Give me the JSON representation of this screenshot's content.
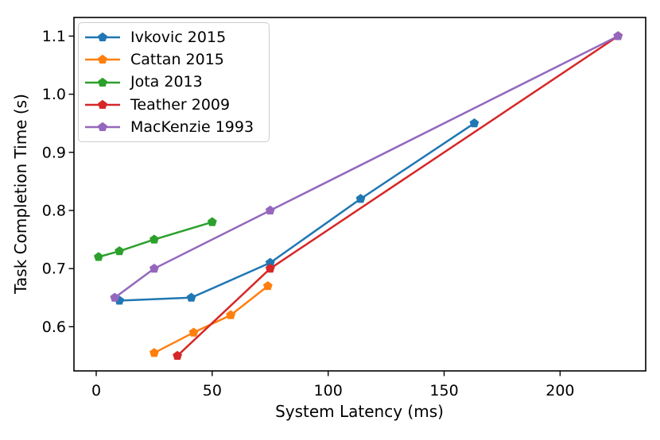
{
  "chart_data": {
    "type": "line",
    "title": "",
    "xlabel": "System Latency (ms)",
    "ylabel": "Task Completion Time (s)",
    "xlim": [
      -9.6,
      236.9
    ],
    "ylim": [
      0.524,
      1.132
    ],
    "x_ticks": [
      0,
      50,
      100,
      150,
      200
    ],
    "y_ticks": [
      0.6,
      0.7,
      0.8,
      0.9,
      1.0,
      1.1
    ],
    "grid": false,
    "legend_position": "upper-left",
    "marker": "pentagon",
    "axis_color": "#000000",
    "background_color": "#ffffff",
    "series": [
      {
        "name": "Ivkovic 2015",
        "color": "#1f77b4",
        "points": [
          [
            10,
            0.645
          ],
          [
            41,
            0.65
          ],
          [
            75,
            0.71
          ],
          [
            114,
            0.82
          ],
          [
            163,
            0.95
          ]
        ]
      },
      {
        "name": "Cattan 2015",
        "color": "#ff7f0e",
        "points": [
          [
            25,
            0.555
          ],
          [
            42,
            0.59
          ],
          [
            58,
            0.62
          ],
          [
            74,
            0.67
          ]
        ]
      },
      {
        "name": "Jota 2013",
        "color": "#2ca02c",
        "points": [
          [
            1,
            0.72
          ],
          [
            10,
            0.73
          ],
          [
            25,
            0.75
          ],
          [
            50,
            0.78
          ]
        ]
      },
      {
        "name": "Teather 2009",
        "color": "#d62728",
        "points": [
          [
            35,
            0.55
          ],
          [
            75,
            0.7
          ],
          [
            225,
            1.1
          ]
        ]
      },
      {
        "name": "MacKenzie 1993",
        "color": "#9467bd",
        "points": [
          [
            8,
            0.65
          ],
          [
            25,
            0.7
          ],
          [
            75,
            0.8
          ],
          [
            225,
            1.1
          ]
        ]
      }
    ]
  }
}
